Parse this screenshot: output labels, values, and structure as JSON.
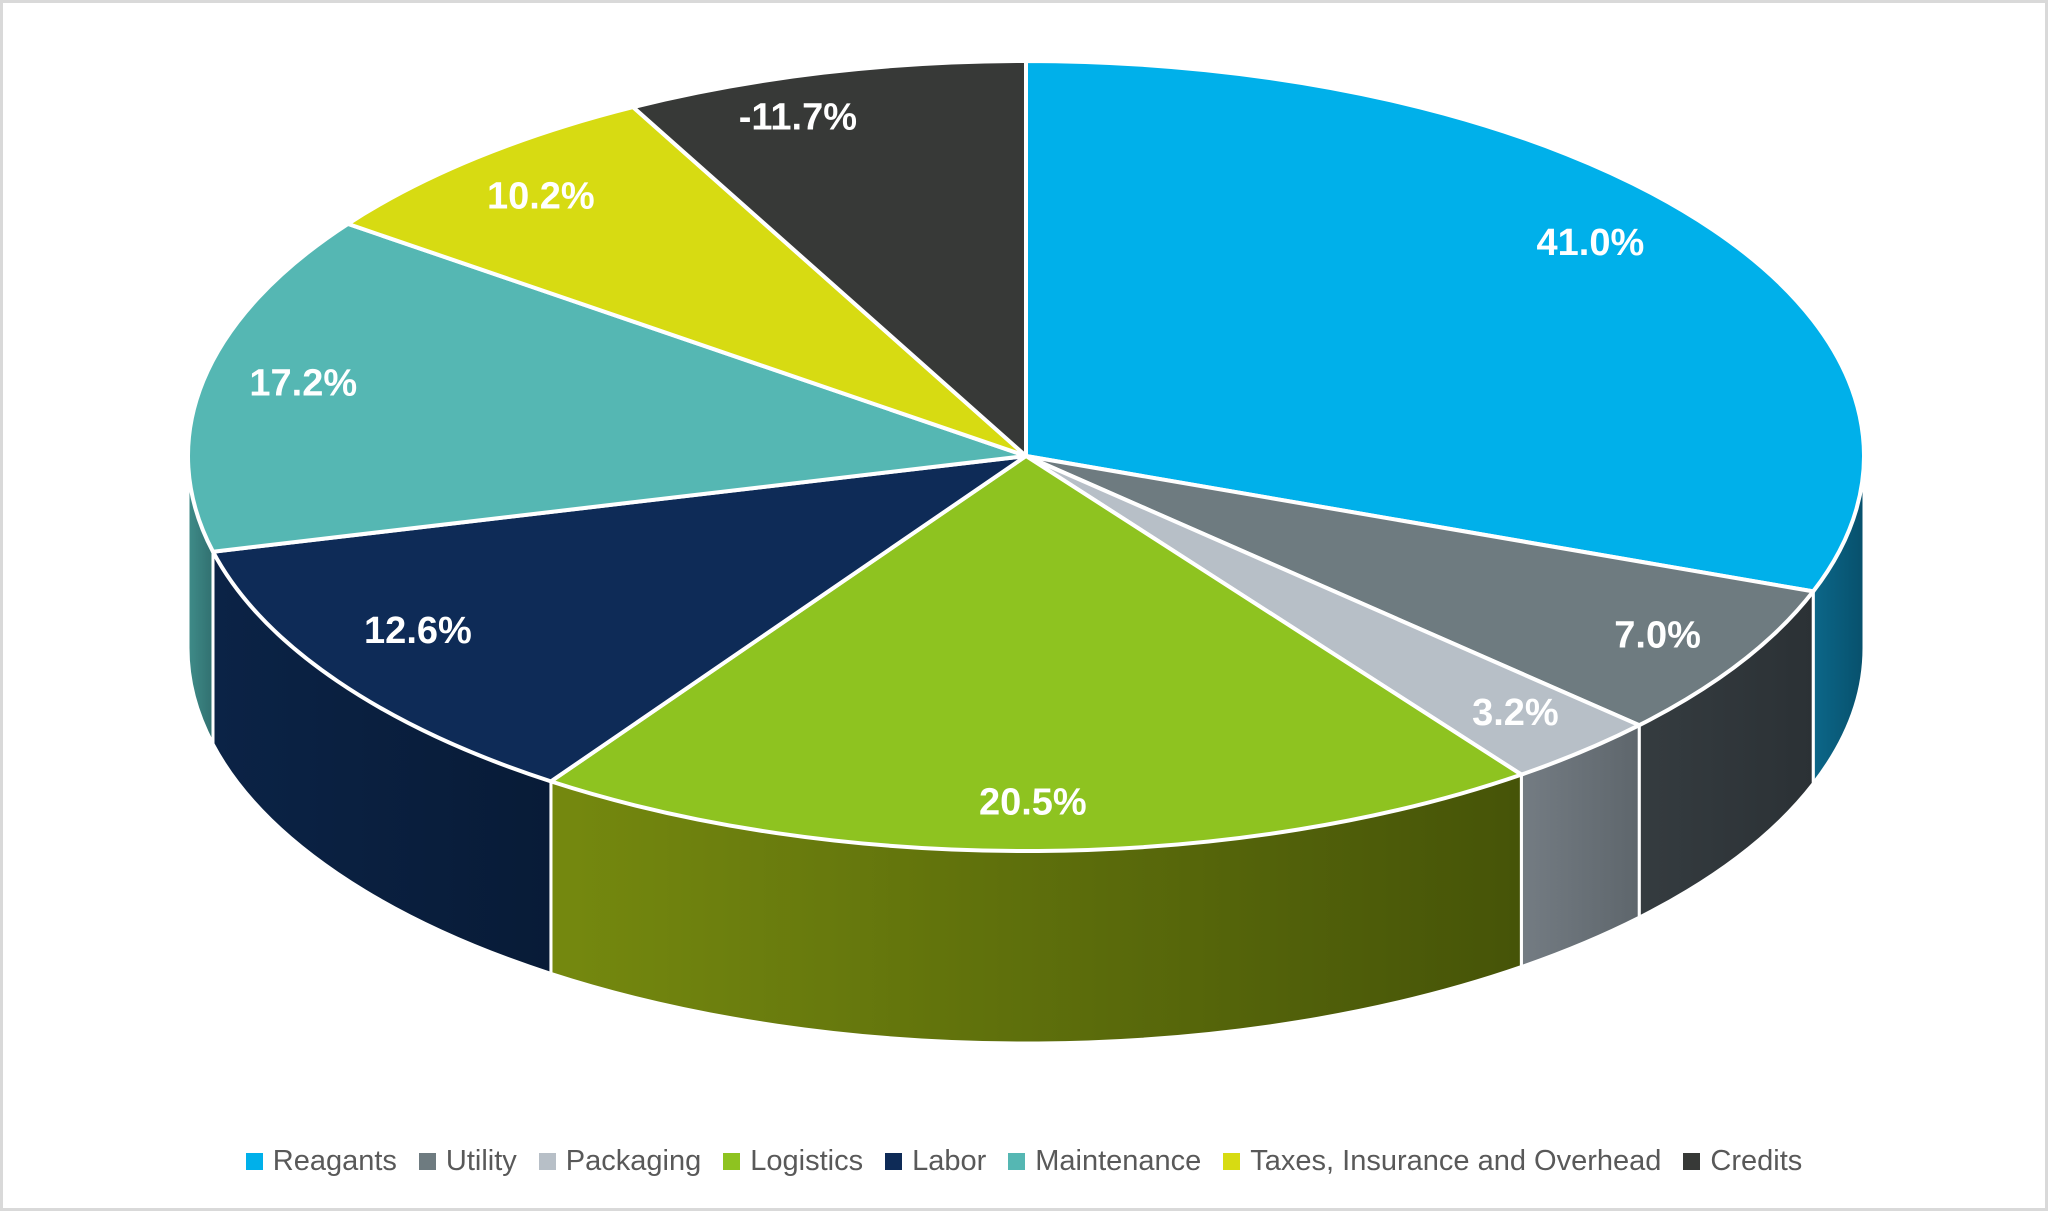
{
  "frame": {
    "background": "#FFFFFF",
    "border_color": "#D9D9D9"
  },
  "chart_data": {
    "type": "pie",
    "style": "3d",
    "title": "",
    "unit": "percent",
    "start_angle_deg": 0,
    "direction": "clockwise",
    "legend_position": "bottom",
    "categories": [
      "Reagants",
      "Utility",
      "Packaging",
      "Logistics",
      "Labor",
      "Maintenance",
      "Taxes, Insurance and Overhead",
      "Credits"
    ],
    "values": [
      41.0,
      7.0,
      3.2,
      20.5,
      12.6,
      17.2,
      10.2,
      -11.7
    ],
    "data_labels": [
      "41.0%",
      "7.0%",
      "3.2%",
      "20.5%",
      "12.6%",
      "17.2%",
      "10.2%",
      "-11.7%"
    ],
    "colors": [
      "#00B0EA",
      "#6E7B80",
      "#B7BFC7",
      "#8EC320",
      "#0E2B57",
      "#55B7B3",
      "#D7DB12",
      "#373937"
    ],
    "label_color": "#FFFFFF",
    "legend_text_color": "#595959"
  }
}
